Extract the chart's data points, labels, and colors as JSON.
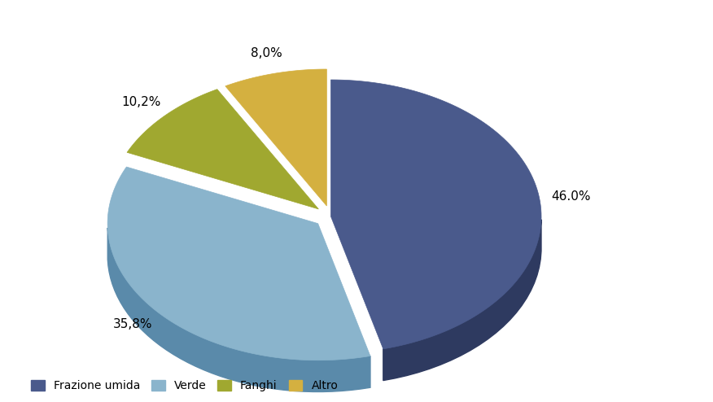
{
  "labels": [
    "Frazione umida",
    "Verde",
    "Fanghi",
    "Altro"
  ],
  "values": [
    46.0,
    35.8,
    10.2,
    8.0
  ],
  "colors_top": [
    "#4a5a8c",
    "#8ab4cc",
    "#a0a830",
    "#d4b040"
  ],
  "colors_side": [
    "#2e3a60",
    "#5a8aaa",
    "#707820",
    "#a08020"
  ],
  "explode": [
    0.0,
    0.08,
    0.08,
    0.08
  ],
  "startangle": 90,
  "depth": 0.15,
  "legend_fontsize": 10,
  "pct_fontsize": 11,
  "background_color": "#ffffff"
}
